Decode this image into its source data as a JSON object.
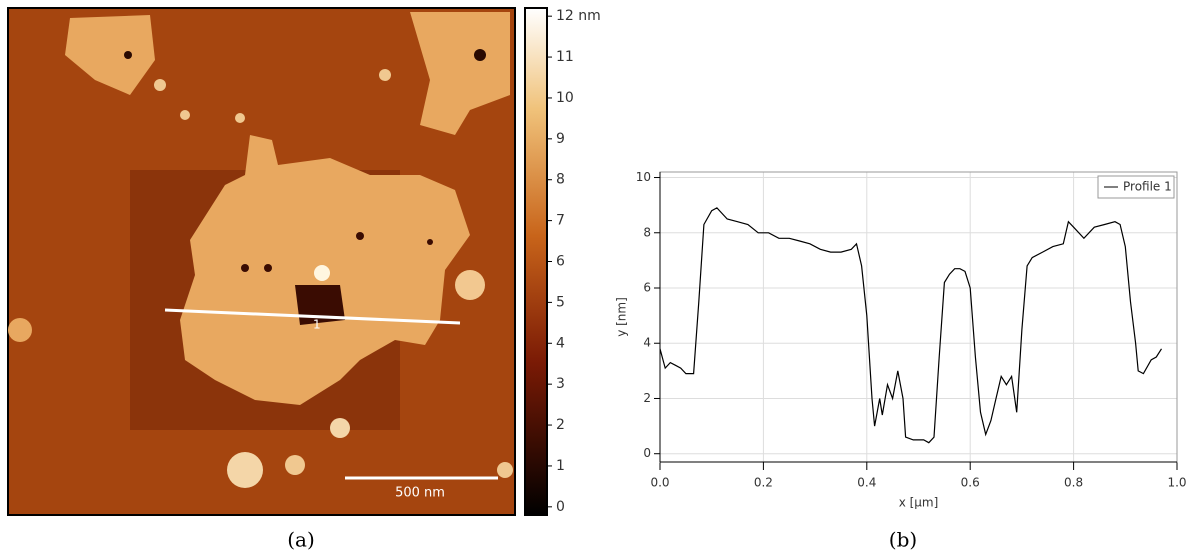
{
  "afm_image": {
    "profile_label": "1",
    "scale_bar": "500 nm",
    "colorbar_lim": [
      -0.2,
      12.2
    ],
    "colorbar_ticks": [
      {
        "value": 12,
        "label": "12 nm"
      },
      11,
      10,
      9,
      8,
      7,
      6,
      5,
      4,
      3,
      2,
      1,
      0
    ]
  },
  "captions": [
    "(a)",
    "(b)"
  ],
  "chart_data": {
    "type": "line",
    "xlabel": "x [µm]",
    "ylabel": "y [nm]",
    "xlim": [
      0,
      1.0
    ],
    "ylim": [
      -0.3,
      10.2
    ],
    "xticks": [
      {
        "value": 0,
        "label": "0.0"
      },
      0.2,
      0.4,
      0.6,
      0.8,
      {
        "value": 1,
        "label": "1.0"
      }
    ],
    "yticks": [
      0,
      2,
      4,
      6,
      8,
      10
    ],
    "grid": true,
    "legend": "upper right",
    "series": [
      {
        "name": "Profile 1",
        "color": "#000000",
        "x": [
          0.0,
          0.01,
          0.02,
          0.03,
          0.04,
          0.05,
          0.065,
          0.075,
          0.085,
          0.1,
          0.11,
          0.13,
          0.15,
          0.17,
          0.19,
          0.21,
          0.23,
          0.25,
          0.27,
          0.29,
          0.31,
          0.33,
          0.35,
          0.37,
          0.38,
          0.39,
          0.4,
          0.41,
          0.415,
          0.425,
          0.43,
          0.44,
          0.45,
          0.46,
          0.47,
          0.475,
          0.49,
          0.51,
          0.52,
          0.53,
          0.54,
          0.55,
          0.56,
          0.57,
          0.58,
          0.59,
          0.6,
          0.61,
          0.62,
          0.63,
          0.64,
          0.65,
          0.66,
          0.67,
          0.68,
          0.69,
          0.7,
          0.71,
          0.72,
          0.74,
          0.76,
          0.78,
          0.79,
          0.8,
          0.82,
          0.84,
          0.86,
          0.88,
          0.89,
          0.9,
          0.91,
          0.92,
          0.925,
          0.935,
          0.95,
          0.96,
          0.97
        ],
        "values": [
          3.8,
          3.1,
          3.3,
          3.2,
          3.1,
          2.9,
          2.9,
          5.5,
          8.3,
          8.8,
          8.9,
          8.5,
          8.4,
          8.3,
          8.0,
          8.0,
          7.8,
          7.8,
          7.7,
          7.6,
          7.4,
          7.3,
          7.3,
          7.4,
          7.6,
          6.8,
          5.0,
          2.0,
          1.0,
          2.0,
          1.4,
          2.5,
          2.0,
          3.0,
          2.0,
          0.6,
          0.5,
          0.5,
          0.4,
          0.6,
          3.5,
          6.2,
          6.5,
          6.7,
          6.7,
          6.6,
          6.0,
          3.5,
          1.5,
          0.7,
          1.2,
          2.0,
          2.8,
          2.5,
          2.8,
          1.5,
          4.5,
          6.8,
          7.1,
          7.3,
          7.5,
          7.6,
          8.4,
          8.2,
          7.8,
          8.2,
          8.3,
          8.4,
          8.3,
          7.5,
          5.5,
          4.0,
          3.0,
          2.9,
          3.4,
          3.5,
          3.8
        ]
      }
    ]
  }
}
